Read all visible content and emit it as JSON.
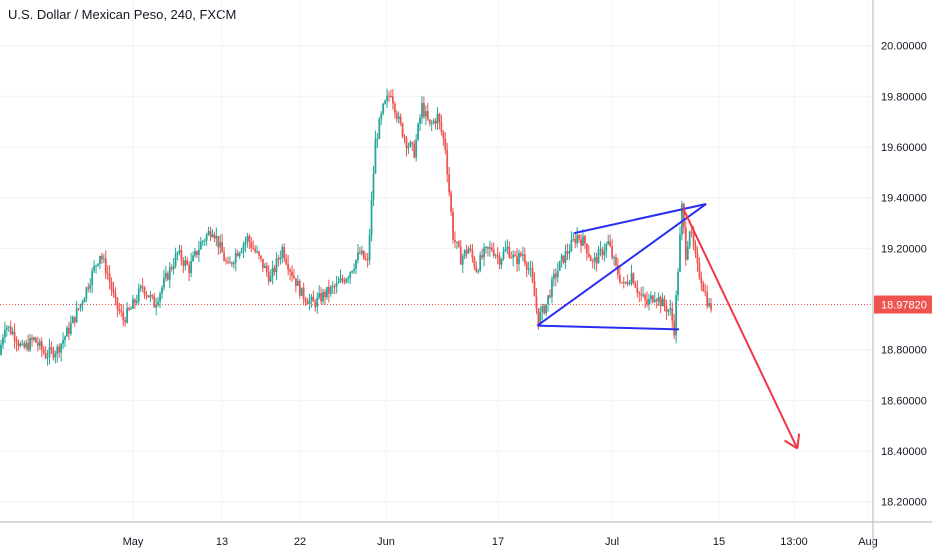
{
  "header": {
    "title": "U.S. Dollar / Mexican Peso, 240, FXCM"
  },
  "colors": {
    "up": "#26a69a",
    "down": "#ef5350",
    "grid": "#f0f3fa",
    "axis_line": "#b2b5be",
    "price_line": "#ef5350",
    "price_label_bg": "#ef5350",
    "trendline": "#2a2ef0",
    "projection_arrow": "#f23645"
  },
  "chart_data": {
    "type": "candlestick",
    "title": "U.S. Dollar / Mexican Peso, 240, FXCM",
    "ylim": [
      18.12,
      20.18
    ],
    "y_ticks": [
      "20.00000",
      "19.80000",
      "19.60000",
      "19.40000",
      "19.20000",
      "18.80000",
      "18.60000",
      "18.40000",
      "18.20000"
    ],
    "x_ticks": [
      "May",
      "13",
      "22",
      "Jun",
      "17",
      "Jul",
      "15",
      "13:00",
      "Aug"
    ],
    "last_price": "18.97820",
    "grid": true,
    "price_path": [
      [
        0,
        18.78
      ],
      [
        3,
        18.9
      ],
      [
        8,
        18.86
      ],
      [
        12,
        18.8
      ],
      [
        18,
        18.84
      ],
      [
        24,
        18.78
      ],
      [
        30,
        18.8
      ],
      [
        36,
        18.88
      ],
      [
        42,
        18.98
      ],
      [
        48,
        19.1
      ],
      [
        52,
        19.18
      ],
      [
        56,
        19.1
      ],
      [
        60,
        18.98
      ],
      [
        64,
        18.92
      ],
      [
        68,
        18.96
      ],
      [
        74,
        19.05
      ],
      [
        80,
        18.98
      ],
      [
        86,
        19.08
      ],
      [
        92,
        19.18
      ],
      [
        98,
        19.12
      ],
      [
        104,
        19.22
      ],
      [
        110,
        19.28
      ],
      [
        114,
        19.2
      ],
      [
        118,
        19.12
      ],
      [
        122,
        19.18
      ],
      [
        128,
        19.24
      ],
      [
        134,
        19.16
      ],
      [
        140,
        19.08
      ],
      [
        146,
        19.2
      ],
      [
        150,
        19.12
      ],
      [
        156,
        19.02
      ],
      [
        162,
        18.98
      ],
      [
        168,
        19.02
      ],
      [
        174,
        19.05
      ],
      [
        180,
        19.1
      ],
      [
        186,
        19.18
      ],
      [
        190,
        19.14
      ],
      [
        194,
        19.62
      ],
      [
        198,
        19.75
      ],
      [
        202,
        19.82
      ],
      [
        206,
        19.7
      ],
      [
        210,
        19.62
      ],
      [
        214,
        19.58
      ],
      [
        218,
        19.76
      ],
      [
        222,
        19.68
      ],
      [
        226,
        19.72
      ],
      [
        230,
        19.6
      ],
      [
        234,
        19.25
      ],
      [
        238,
        19.16
      ],
      [
        242,
        19.2
      ],
      [
        246,
        19.12
      ],
      [
        250,
        19.18
      ],
      [
        254,
        19.2
      ],
      [
        258,
        19.16
      ],
      [
        262,
        19.2
      ],
      [
        266,
        19.15
      ],
      [
        270,
        19.18
      ],
      [
        274,
        19.1
      ],
      [
        278,
        18.92
      ],
      [
        282,
        18.98
      ],
      [
        286,
        19.08
      ],
      [
        290,
        19.15
      ],
      [
        294,
        19.2
      ],
      [
        298,
        19.25
      ],
      [
        302,
        19.22
      ],
      [
        306,
        19.14
      ],
      [
        310,
        19.18
      ],
      [
        314,
        19.22
      ],
      [
        318,
        19.12
      ],
      [
        322,
        19.05
      ],
      [
        326,
        19.1
      ],
      [
        330,
        19.02
      ],
      [
        334,
        18.98
      ],
      [
        338,
        19.02
      ],
      [
        342,
        18.98
      ],
      [
        346,
        18.95
      ],
      [
        348,
        18.88
      ],
      [
        350,
        19.12
      ],
      [
        352,
        19.36
      ],
      [
        354,
        19.18
      ],
      [
        356,
        19.28
      ],
      [
        358,
        19.2
      ],
      [
        360,
        19.12
      ],
      [
        362,
        19.08
      ],
      [
        364,
        19.02
      ],
      [
        366,
        18.97
      ]
    ],
    "x_domain": [
      0,
      450
    ],
    "annotations": [
      {
        "type": "trendline",
        "from": [
          277,
          18.895
        ],
        "to": [
          364,
          19.375
        ]
      },
      {
        "type": "trendline",
        "from": [
          277,
          18.895
        ],
        "to": [
          350,
          18.88
        ]
      },
      {
        "type": "trendline",
        "from": [
          296,
          19.26
        ],
        "to": [
          364,
          19.375
        ]
      },
      {
        "type": "arrow",
        "from": [
          352,
          19.36
        ],
        "to": [
          411,
          18.41
        ]
      }
    ]
  }
}
